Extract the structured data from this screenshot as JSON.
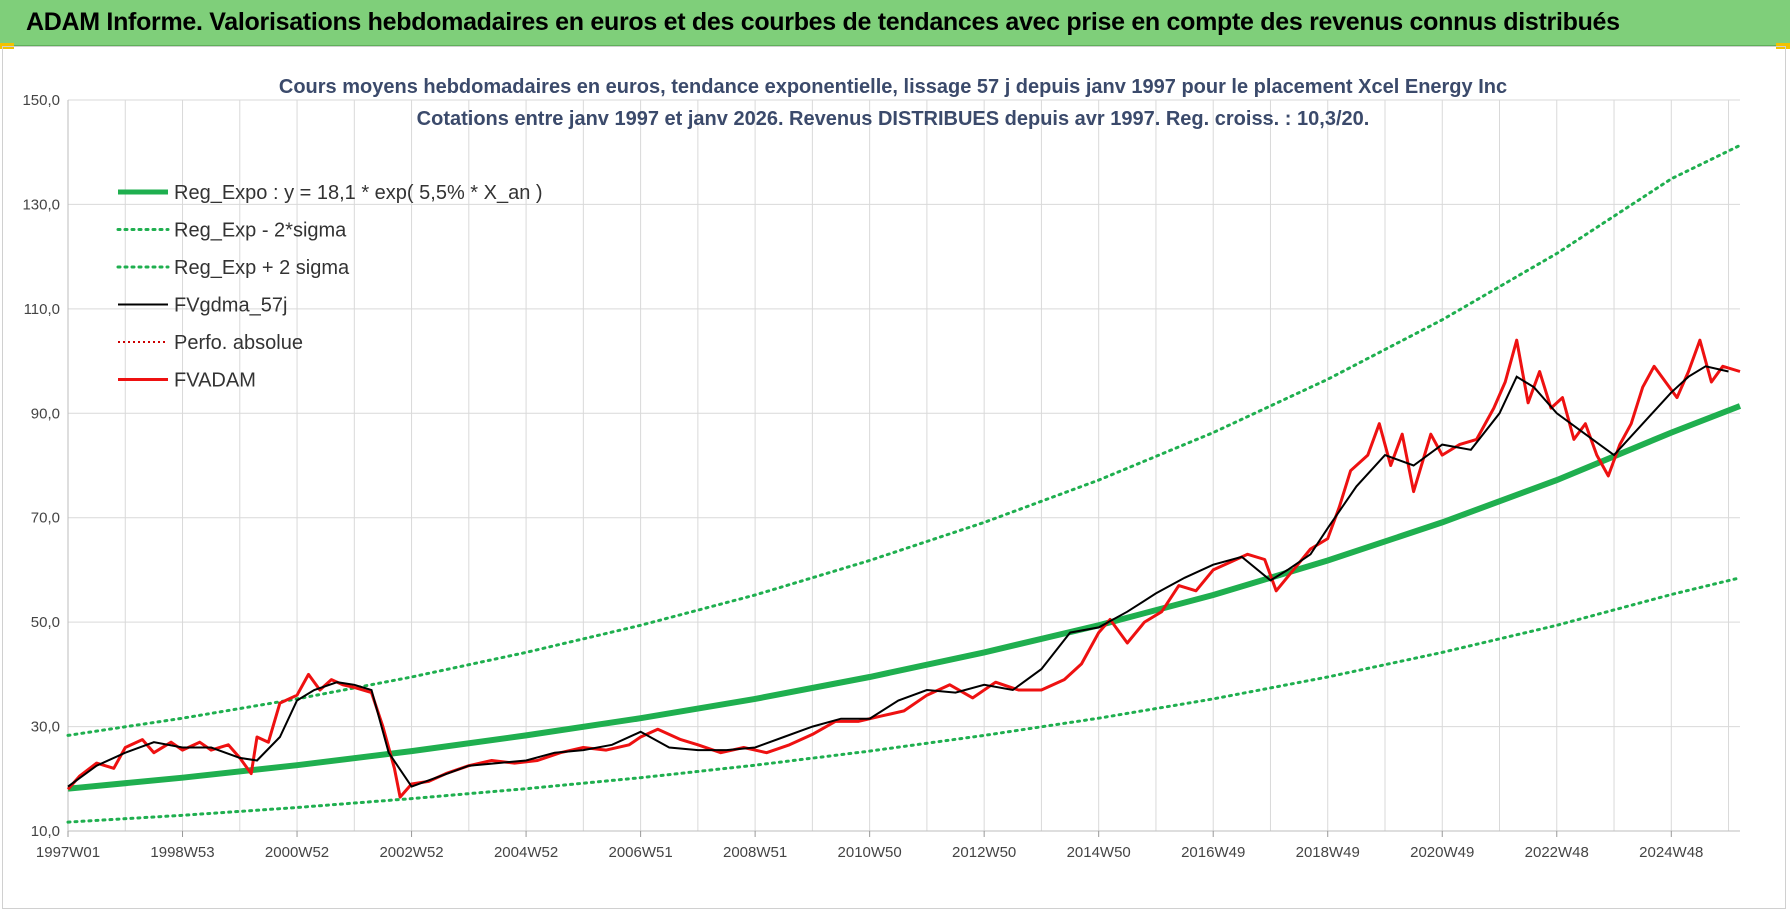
{
  "header": {
    "banner": "ADAM Informe. Valorisations hebdomadaires en euros et des courbes de tendances avec prise en compte des revenus connus distribués"
  },
  "colors": {
    "banner_bg": "#7fcf7a",
    "regression": "#1faf4f",
    "envelope": "#1faf4f",
    "smoothed": "#000000",
    "price": "#ee1111",
    "perfo": "#cc0000",
    "grid": "#d9d9d9"
  },
  "chart_data": {
    "type": "line",
    "title": "Cours moyens hebdomadaires en euros, tendance exponentielle, lissage 57 j depuis janv 1997 pour le placement Xcel Energy Inc",
    "subtitle": "Cotations entre janv 1997 et janv 2026. Revenus DISTRIBUES depuis avr 1997.  Reg. croiss. : 10,3/20.",
    "xlabel": "",
    "ylabel": "",
    "x_range": [
      1997.0,
      2026.0
    ],
    "ylim": [
      10,
      150
    ],
    "y_ticks": [
      "10,0",
      "30,0",
      "50,0",
      "70,0",
      "90,0",
      "110,0",
      "130,0",
      "150,0"
    ],
    "x_ticks": [
      {
        "label": "1997W01",
        "x": 1997.0
      },
      {
        "label": "1998W53",
        "x": 1999.0
      },
      {
        "label": "2000W52",
        "x": 2001.0
      },
      {
        "label": "2002W52",
        "x": 2003.0
      },
      {
        "label": "2004W52",
        "x": 2005.0
      },
      {
        "label": "2006W51",
        "x": 2007.0
      },
      {
        "label": "2008W51",
        "x": 2009.0
      },
      {
        "label": "2010W50",
        "x": 2011.0
      },
      {
        "label": "2012W50",
        "x": 2013.0
      },
      {
        "label": "2014W50",
        "x": 2015.0
      },
      {
        "label": "2016W49",
        "x": 2017.0
      },
      {
        "label": "2018W49",
        "x": 2019.0
      },
      {
        "label": "2020W49",
        "x": 2021.0
      },
      {
        "label": "2022W48",
        "x": 2023.0
      },
      {
        "label": "2024W48",
        "x": 2025.0
      }
    ],
    "grid": true,
    "legend_position": "top-left",
    "series": [
      {
        "name": "Reg_Expo : y = 18,1 * exp( 5,5% *  X_an )",
        "style": "solid-thick",
        "x": [
          1997.0,
          1999.0,
          2001.0,
          2003.0,
          2005.0,
          2007.0,
          2009.0,
          2011.0,
          2013.0,
          2015.0,
          2017.0,
          2019.0,
          2021.0,
          2023.0,
          2025.0,
          2026.2
        ],
        "y": [
          18.1,
          20.2,
          22.6,
          25.3,
          28.3,
          31.6,
          35.3,
          39.5,
          44.2,
          49.4,
          55.2,
          61.8,
          69.1,
          77.2,
          86.3,
          91.4
        ]
      },
      {
        "name": "Reg_Exp - 2*sigma",
        "style": "dotted",
        "x": [
          1997.0,
          1999.0,
          2001.0,
          2003.0,
          2005.0,
          2007.0,
          2009.0,
          2011.0,
          2013.0,
          2015.0,
          2017.0,
          2019.0,
          2021.0,
          2023.0,
          2025.0,
          2026.2
        ],
        "y": [
          11.7,
          13.0,
          14.5,
          16.2,
          18.1,
          20.2,
          22.6,
          25.3,
          28.3,
          31.6,
          35.3,
          39.5,
          44.2,
          49.4,
          55.3,
          58.5
        ]
      },
      {
        "name": "Reg_Exp + 2 sigma",
        "style": "dotted",
        "x": [
          1997.0,
          1999.0,
          2001.0,
          2003.0,
          2005.0,
          2007.0,
          2009.0,
          2011.0,
          2013.0,
          2015.0,
          2017.0,
          2019.0,
          2021.0,
          2023.0,
          2025.0,
          2026.2
        ],
        "y": [
          28.3,
          31.6,
          35.3,
          39.5,
          44.2,
          49.4,
          55.2,
          61.8,
          69.1,
          77.2,
          86.3,
          96.5,
          107.9,
          120.6,
          134.9,
          141.3
        ]
      },
      {
        "name": "FVgdma_57j",
        "style": "solid-thin",
        "x": [
          1997.0,
          1997.5,
          1998.0,
          1998.5,
          1999.0,
          1999.5,
          2000.0,
          2000.3,
          2000.7,
          2001.0,
          2001.3,
          2001.7,
          2002.0,
          2002.3,
          2002.6,
          2003.0,
          2003.5,
          2004.0,
          2004.5,
          2005.0,
          2005.5,
          2006.0,
          2006.5,
          2007.0,
          2007.5,
          2008.0,
          2008.5,
          2009.0,
          2009.5,
          2010.0,
          2010.5,
          2011.0,
          2011.5,
          2012.0,
          2012.5,
          2013.0,
          2013.5,
          2014.0,
          2014.5,
          2015.0,
          2015.5,
          2016.0,
          2016.5,
          2017.0,
          2017.5,
          2018.0,
          2018.3,
          2018.7,
          2019.0,
          2019.5,
          2020.0,
          2020.5,
          2021.0,
          2021.5,
          2022.0,
          2022.3,
          2022.6,
          2023.0,
          2023.5,
          2024.0,
          2024.5,
          2025.0,
          2025.3,
          2025.6,
          2026.0
        ],
        "y": [
          18.5,
          22.5,
          25.0,
          27.0,
          26.0,
          26.0,
          24.0,
          23.5,
          28.0,
          35.0,
          37.0,
          38.5,
          38.0,
          37.0,
          25.0,
          18.5,
          20.5,
          22.5,
          23.0,
          23.5,
          25.0,
          25.5,
          26.5,
          29.0,
          26.0,
          25.5,
          25.5,
          26.0,
          28.0,
          30.0,
          31.5,
          31.5,
          35.0,
          37.0,
          36.5,
          38.0,
          37.0,
          41.0,
          48.0,
          49.0,
          52.0,
          55.5,
          58.5,
          61.0,
          62.5,
          58.0,
          60.0,
          63.0,
          68.0,
          76.0,
          82.0,
          80.0,
          84.0,
          83.0,
          90.0,
          97.0,
          95.0,
          90.0,
          86.0,
          82.0,
          88.0,
          94.0,
          97.0,
          99.0,
          98.0
        ]
      },
      {
        "name": "Perfo. absolue",
        "style": "dotted-red",
        "x": [],
        "y": []
      },
      {
        "name": "FVADAM",
        "style": "solid-red",
        "x": [
          1997.0,
          1997.2,
          1997.5,
          1997.8,
          1998.0,
          1998.3,
          1998.5,
          1998.8,
          1999.0,
          1999.3,
          1999.5,
          1999.8,
          2000.0,
          2000.2,
          2000.3,
          2000.5,
          2000.7,
          2001.0,
          2001.2,
          2001.4,
          2001.6,
          2001.8,
          2002.0,
          2002.3,
          2002.5,
          2002.7,
          2002.8,
          2003.0,
          2003.3,
          2003.6,
          2004.0,
          2004.4,
          2004.8,
          2005.2,
          2005.6,
          2006.0,
          2006.4,
          2006.8,
          2007.0,
          2007.3,
          2007.7,
          2008.0,
          2008.4,
          2008.8,
          2009.2,
          2009.6,
          2010.0,
          2010.4,
          2010.8,
          2011.2,
          2011.6,
          2012.0,
          2012.4,
          2012.8,
          2013.2,
          2013.6,
          2014.0,
          2014.4,
          2014.7,
          2015.0,
          2015.2,
          2015.5,
          2015.8,
          2016.1,
          2016.4,
          2016.7,
          2017.0,
          2017.3,
          2017.6,
          2017.9,
          2018.1,
          2018.4,
          2018.7,
          2019.0,
          2019.2,
          2019.4,
          2019.7,
          2019.9,
          2020.1,
          2020.3,
          2020.5,
          2020.8,
          2021.0,
          2021.3,
          2021.6,
          2021.9,
          2022.1,
          2022.3,
          2022.5,
          2022.7,
          2022.9,
          2023.1,
          2023.3,
          2023.5,
          2023.7,
          2023.9,
          2024.1,
          2024.3,
          2024.5,
          2024.7,
          2024.9,
          2025.1,
          2025.3,
          2025.5,
          2025.7,
          2025.9,
          2026.2
        ],
        "y": [
          18.0,
          20.5,
          23.0,
          22.0,
          26.0,
          27.5,
          25.0,
          27.0,
          25.5,
          27.0,
          25.5,
          26.5,
          24.0,
          21.0,
          28.0,
          27.0,
          34.5,
          36.0,
          40.0,
          37.0,
          39.0,
          38.0,
          37.5,
          36.5,
          30.0,
          22.0,
          16.5,
          19.0,
          19.5,
          21.0,
          22.5,
          23.5,
          23.0,
          23.5,
          25.0,
          26.0,
          25.5,
          26.5,
          28.0,
          29.5,
          27.5,
          26.5,
          25.0,
          26.0,
          25.0,
          26.5,
          28.5,
          31.0,
          31.0,
          32.0,
          33.0,
          36.0,
          38.0,
          35.5,
          38.5,
          37.0,
          37.0,
          39.0,
          42.0,
          48.0,
          50.5,
          46.0,
          50.0,
          52.0,
          57.0,
          56.0,
          60.0,
          61.5,
          63.0,
          62.0,
          56.0,
          60.0,
          64.0,
          66.0,
          72.0,
          79.0,
          82.0,
          88.0,
          80.0,
          86.0,
          75.0,
          86.0,
          82.0,
          84.0,
          85.0,
          91.0,
          96.0,
          104.0,
          92.0,
          98.0,
          91.0,
          93.0,
          85.0,
          88.0,
          82.0,
          78.0,
          84.0,
          88.0,
          95.0,
          99.0,
          96.0,
          93.0,
          98.0,
          104.0,
          96.0,
          99.0,
          98.0
        ]
      }
    ]
  }
}
